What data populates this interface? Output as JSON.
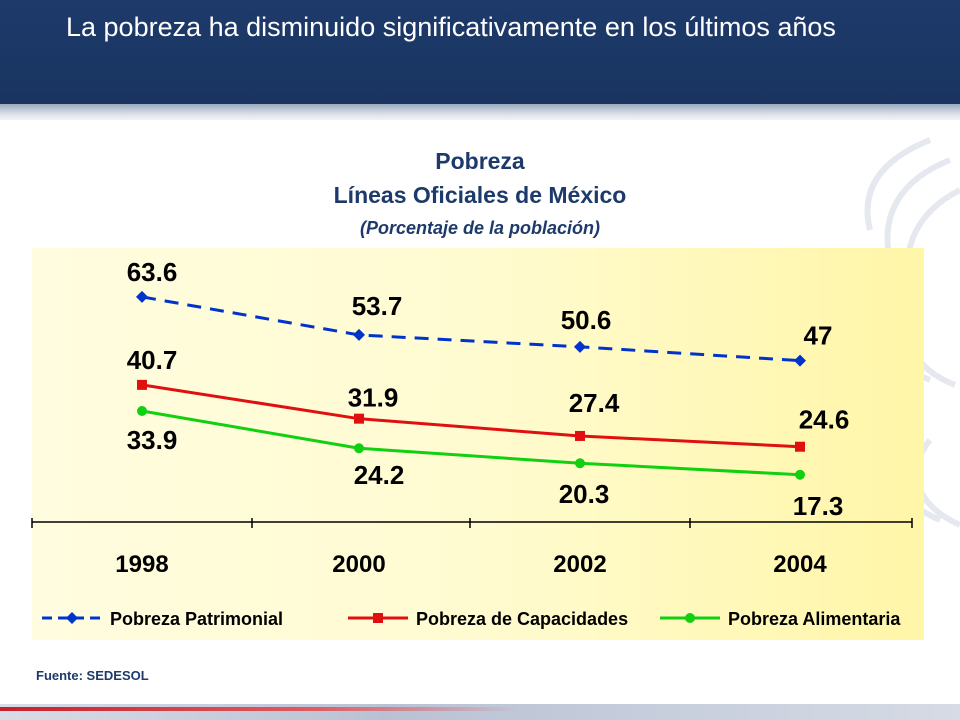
{
  "header": {
    "title": "La pobreza ha disminuido significativamente en los últimos años"
  },
  "footer": {
    "source": "Fuente: SEDESOL"
  },
  "colors": {
    "header_bg": "#1d3a6b",
    "plot_bg": "#fffbd0",
    "patrimonial": "#0033cc",
    "capacidades": "#e01010",
    "alimentaria": "#10d010"
  },
  "chart_data": {
    "type": "line",
    "title": "Pobreza",
    "subtitle": "Líneas Oficiales de México",
    "ylabel": "(Porcentaje de la población)",
    "categories": [
      "1998",
      "2000",
      "2002",
      "2004"
    ],
    "ylim": [
      0,
      70
    ],
    "grid": false,
    "legend_position": "bottom",
    "series": [
      {
        "name": "Pobreza Patrimonial",
        "values": [
          63.6,
          53.7,
          50.6,
          47
        ],
        "color": "#0033cc",
        "marker": "diamond",
        "dash": "dashed"
      },
      {
        "name": "Pobreza de Capacidades",
        "values": [
          40.7,
          31.9,
          27.4,
          24.6
        ],
        "color": "#e01010",
        "marker": "square",
        "dash": "solid"
      },
      {
        "name": "Pobreza Alimentaria",
        "values": [
          33.9,
          24.2,
          20.3,
          17.3
        ],
        "color": "#10d010",
        "marker": "circle",
        "dash": "solid"
      }
    ],
    "labels": {
      "Pobreza Patrimonial": [
        "63.6",
        "53.7",
        "50.6",
        "47"
      ],
      "Pobreza de Capacidades": [
        "40.7",
        "31.9",
        "27.4",
        "24.6"
      ],
      "Pobreza Alimentaria": [
        "33.9",
        "24.2",
        "20.3",
        "17.3"
      ]
    }
  }
}
